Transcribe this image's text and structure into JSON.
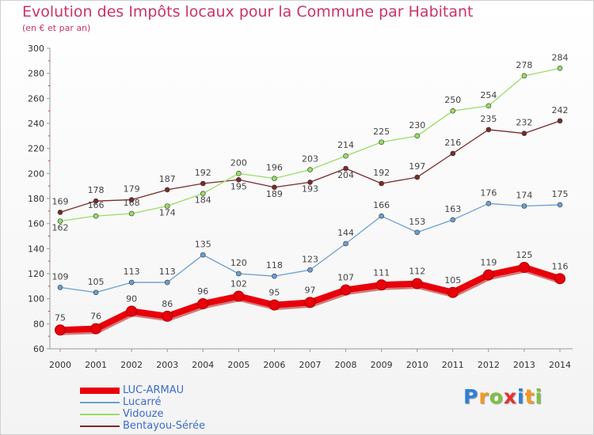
{
  "title": "Evolution des Impôts locaux pour la Commune par Habitant",
  "subtitle": "(en € et par an)",
  "logo": {
    "text": "Proxiti",
    "letters": [
      {
        "ch": "P",
        "color": "#2f7fd8"
      },
      {
        "ch": "r",
        "color": "#f59a1e"
      },
      {
        "ch": "o",
        "color": "#7cc242"
      },
      {
        "ch": "x",
        "color": "#e8312f"
      },
      {
        "ch": "i",
        "color": "#2f7fd8"
      },
      {
        "ch": "t",
        "color": "#f59a1e"
      },
      {
        "ch": "i",
        "color": "#7cc242"
      }
    ]
  },
  "chart_data": {
    "type": "line",
    "x": [
      "2000",
      "2001",
      "2002",
      "2003",
      "2004",
      "2005",
      "2006",
      "2007",
      "2008",
      "2009",
      "2010",
      "2011",
      "2012",
      "2013",
      "2014"
    ],
    "ylim": [
      60,
      300
    ],
    "yticks": [
      60,
      80,
      100,
      120,
      140,
      160,
      180,
      200,
      220,
      240,
      260,
      280,
      300
    ],
    "grid": false,
    "legend_position": "bottom-left",
    "series": [
      {
        "name": "LUC-ARMAU",
        "color": "#e8000b",
        "emphasis": true,
        "values": [
          75,
          76,
          90,
          86,
          96,
          102,
          95,
          97,
          107,
          111,
          112,
          105,
          119,
          125,
          116
        ]
      },
      {
        "name": "Lucarré",
        "color": "#6a9fd4",
        "emphasis": false,
        "values": [
          109,
          105,
          113,
          113,
          135,
          120,
          118,
          123,
          144,
          166,
          153,
          163,
          176,
          174,
          175
        ]
      },
      {
        "name": "Vidouze",
        "color": "#99dd66",
        "emphasis": false,
        "values": [
          162,
          166,
          168,
          174,
          184,
          200,
          196,
          203,
          214,
          225,
          230,
          250,
          254,
          278,
          284
        ]
      },
      {
        "name": "Bentayou-Sérée",
        "color": "#7b2a2a",
        "emphasis": false,
        "values": [
          169,
          178,
          179,
          187,
          192,
          195,
          189,
          193,
          204,
          192,
          197,
          216,
          235,
          232,
          242
        ]
      }
    ],
    "label_offsets": {
      "LUC-ARMAU": [
        -12,
        -12,
        -12,
        -12,
        -12,
        -12,
        -12,
        -12,
        -12,
        -12,
        -12,
        -12,
        -12,
        -12,
        -12
      ],
      "Lucarré": [
        -10,
        -10,
        -10,
        -10,
        -10,
        -10,
        -10,
        -10,
        -10,
        -10,
        -10,
        -10,
        -10,
        -10,
        -10
      ],
      "Vidouze": [
        4,
        -10,
        -10,
        4,
        4,
        -10,
        -10,
        -10,
        -10,
        -10,
        -10,
        -10,
        -10,
        -10,
        -10
      ],
      "Bentayou-Sérée": [
        -10,
        -10,
        -10,
        -10,
        -10,
        4,
        4,
        4,
        4,
        -10,
        -10,
        -10,
        -10,
        -10,
        -10
      ]
    }
  }
}
